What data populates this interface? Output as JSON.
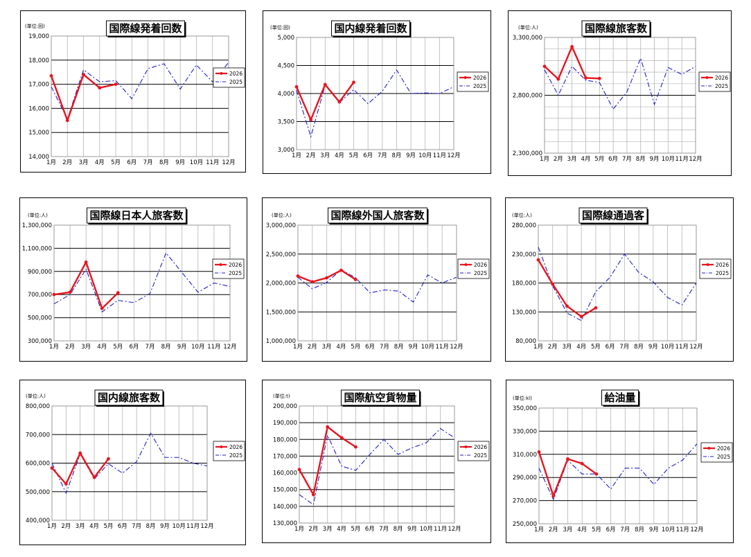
{
  "legend": {
    "y2026": "2026",
    "y2025": "2025"
  },
  "months": [
    "1月",
    "2月",
    "3月",
    "4月",
    "5月",
    "6月",
    "7月",
    "8月",
    "9月",
    "10月",
    "11月",
    "12月"
  ],
  "colors": {
    "y2026": "#e8141e",
    "y2025": "#1e1ec8"
  },
  "chart_data": [
    {
      "type": "line",
      "title": "国際線発着回数",
      "unit": "(単位:回)",
      "ylim": [
        14000,
        19000
      ],
      "yticks": [
        14000,
        15000,
        16000,
        17000,
        18000,
        19000
      ],
      "ytick_labels": [
        "14,000",
        "15,000",
        "16,000",
        "17,000",
        "18,000",
        "19,000"
      ],
      "major": [
        15000,
        16000,
        17000,
        18000
      ],
      "minor_step": 0,
      "series": [
        {
          "name": "2026",
          "values": [
            17350,
            15500,
            17400,
            16850,
            17000
          ]
        },
        {
          "name": "2025",
          "values": [
            16900,
            15550,
            17600,
            17100,
            17150,
            16400,
            17650,
            17850,
            16800,
            17800,
            17100,
            17900
          ]
        }
      ]
    },
    {
      "type": "line",
      "title": "国内線発着回数",
      "unit": "(単位:回)",
      "ylim": [
        3000,
        5000
      ],
      "yticks": [
        3000,
        3500,
        4000,
        4500,
        5000
      ],
      "ytick_labels": [
        "3,000",
        "3,500",
        "4,000",
        "4,500",
        "5,000"
      ],
      "major": [
        3500,
        4000,
        4500
      ],
      "minor_step": 0,
      "series": [
        {
          "name": "2026",
          "values": [
            4120,
            3530,
            4160,
            3850,
            4200
          ]
        },
        {
          "name": "2025",
          "values": [
            4060,
            3230,
            4150,
            3840,
            4070,
            3820,
            4040,
            4420,
            4000,
            4010,
            4000,
            4120
          ]
        }
      ]
    },
    {
      "type": "line",
      "title": "国際線旅客数",
      "unit": "(単位:人)",
      "ylim": [
        2300000,
        3300000
      ],
      "yticks": [
        2300000,
        2800000,
        3300000
      ],
      "ytick_labels": [
        "2,300,000",
        "2,800,000",
        "3,300,000"
      ],
      "major": [
        2800000
      ],
      "minor_step": 100000,
      "series": [
        {
          "name": "2026",
          "values": [
            3050000,
            2940000,
            3220000,
            2950000,
            2945000
          ]
        },
        {
          "name": "2025",
          "values": [
            3020000,
            2800000,
            3050000,
            2930000,
            2910000,
            2680000,
            2830000,
            3120000,
            2720000,
            3040000,
            2980000,
            3050000
          ]
        }
      ]
    },
    {
      "type": "line",
      "title": "国際線日本人旅客数",
      "unit": "(単位:人)",
      "ylim": [
        300000,
        1300000
      ],
      "yticks": [
        300000,
        500000,
        700000,
        900000,
        1100000,
        1300000
      ],
      "ytick_labels": [
        "300,000",
        "500,000",
        "700,000",
        "900,000",
        "1,100,000",
        "1,300,000"
      ],
      "major": [
        500000,
        700000,
        900000,
        1100000
      ],
      "minor_step": 0,
      "series": [
        {
          "name": "2026",
          "values": [
            700000,
            720000,
            980000,
            580000,
            715000
          ]
        },
        {
          "name": "2025",
          "values": [
            620000,
            700000,
            920000,
            550000,
            650000,
            630000,
            710000,
            1060000,
            890000,
            720000,
            800000,
            770000
          ]
        }
      ]
    },
    {
      "type": "line",
      "title": "国際線外国人旅客数",
      "unit": "(単位:人)",
      "ylim": [
        1000000,
        3000000
      ],
      "yticks": [
        1000000,
        1500000,
        2000000,
        2500000,
        3000000
      ],
      "ytick_labels": [
        "1,000,000",
        "1,500,000",
        "2,000,000",
        "2,500,000",
        "3,000,000"
      ],
      "major": [
        1500000,
        2000000,
        2500000
      ],
      "minor_step": 0,
      "series": [
        {
          "name": "2026",
          "values": [
            2120000,
            2020000,
            2090000,
            2220000,
            2060000
          ]
        },
        {
          "name": "2025",
          "values": [
            2100000,
            1900000,
            2010000,
            2230000,
            2090000,
            1830000,
            1880000,
            1860000,
            1670000,
            2140000,
            2000000,
            2100000
          ]
        }
      ]
    },
    {
      "type": "line",
      "title": "国際線通過客",
      "unit": "(単位:人)",
      "ylim": [
        80000,
        280000
      ],
      "yticks": [
        80000,
        130000,
        180000,
        230000,
        280000
      ],
      "ytick_labels": [
        "80,000",
        "130,000",
        "180,000",
        "230,000",
        "280,000"
      ],
      "major": [
        130000,
        180000,
        230000
      ],
      "minor_step": 0,
      "series": [
        {
          "name": "2026",
          "values": [
            220000,
            178000,
            140000,
            122000,
            137000
          ]
        },
        {
          "name": "2025",
          "values": [
            242000,
            175000,
            128000,
            115000,
            165000,
            190000,
            230000,
            198000,
            182000,
            155000,
            142000,
            180000
          ]
        }
      ]
    },
    {
      "type": "line",
      "title": "国内線旅客数",
      "unit": "(単位:人)",
      "ylim": [
        400000,
        800000
      ],
      "yticks": [
        400000,
        500000,
        600000,
        700000,
        800000
      ],
      "ytick_labels": [
        "400,000",
        "500,000",
        "600,000",
        "700,000",
        "800,000"
      ],
      "major": [
        500000,
        600000,
        700000
      ],
      "minor_step": 0,
      "series": [
        {
          "name": "2026",
          "values": [
            583000,
            527000,
            635000,
            550000,
            615000
          ]
        },
        {
          "name": "2025",
          "values": [
            600000,
            495000,
            632000,
            545000,
            598000,
            565000,
            605000,
            705000,
            620000,
            620000,
            600000,
            590000
          ]
        }
      ]
    },
    {
      "type": "line",
      "title": "国際航空貨物量",
      "unit": "(単位:t)",
      "ylim": [
        130000,
        200000
      ],
      "yticks": [
        130000,
        140000,
        150000,
        160000,
        170000,
        180000,
        190000,
        200000
      ],
      "ytick_labels": [
        "130,000",
        "140,000",
        "150,000",
        "160,000",
        "170,000",
        "180,000",
        "190,000",
        "200,000"
      ],
      "major": [
        140000,
        150000,
        160000,
        170000,
        180000,
        190000
      ],
      "minor_step": 0,
      "series": [
        {
          "name": "2026",
          "values": [
            162000,
            147000,
            187500,
            181000,
            175500
          ]
        },
        {
          "name": "2025",
          "values": [
            147000,
            141000,
            182500,
            164000,
            161500,
            171000,
            180000,
            171000,
            175000,
            178000,
            186500,
            181000
          ]
        }
      ]
    },
    {
      "type": "line",
      "title": "給油量",
      "unit": "(単位:kl)",
      "ylim": [
        250000,
        350000
      ],
      "yticks": [
        250000,
        270000,
        290000,
        310000,
        330000,
        350000
      ],
      "ytick_labels": [
        "250,000",
        "270,000",
        "290,000",
        "310,000",
        "330,000",
        "350,000"
      ],
      "major": [
        270000,
        290000,
        310000,
        330000
      ],
      "minor_step": 0,
      "series": [
        {
          "name": "2026",
          "values": [
            312000,
            274000,
            306000,
            302000,
            293000
          ]
        },
        {
          "name": "2025",
          "values": [
            298000,
            271000,
            305000,
            293000,
            293000,
            280000,
            298000,
            298000,
            284000,
            298000,
            305000,
            319000
          ]
        }
      ]
    }
  ]
}
